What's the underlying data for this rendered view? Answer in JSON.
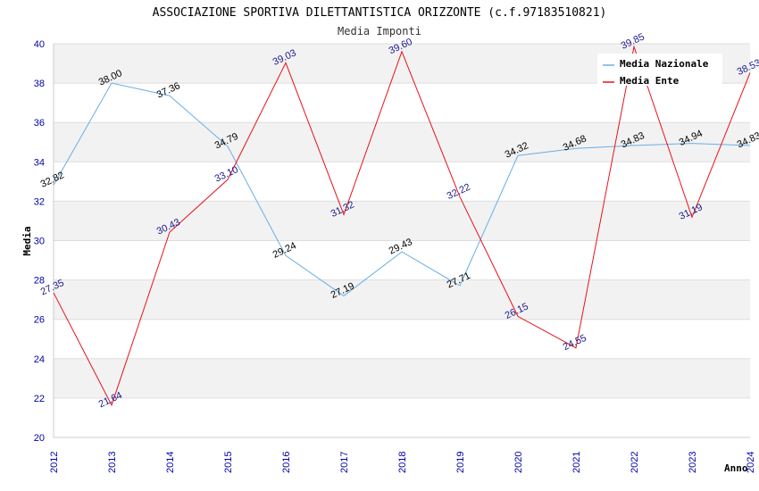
{
  "chart_data": {
    "type": "line",
    "title": "ASSOCIAZIONE SPORTIVA DILETTANTISTICA ORIZZONTE (c.f.97183510821)",
    "subtitle": "Media Imponti",
    "xlabel": "Anno",
    "ylabel": "Media",
    "ylim": [
      20,
      40
    ],
    "yticks": [
      "20",
      "22",
      "24",
      "26",
      "28",
      "30",
      "32",
      "34",
      "36",
      "38",
      "40"
    ],
    "x": [
      "2012",
      "2013",
      "2014",
      "2015",
      "2016",
      "2017",
      "2018",
      "2019",
      "2020",
      "2021",
      "2022",
      "2023",
      "2024"
    ],
    "legend_position": "top-right",
    "series": [
      {
        "name": "Media Nazionale",
        "color": "#6aaee6",
        "values": [
          32.82,
          38.0,
          37.36,
          34.79,
          29.24,
          27.19,
          29.43,
          27.71,
          34.32,
          34.68,
          34.83,
          34.94,
          34.83
        ],
        "labels": [
          "32.82",
          "38.00",
          "37.36",
          "34.79",
          "29.24",
          "27.19",
          "29.43",
          "27.71",
          "34.32",
          "34.68",
          "34.83",
          "34.94",
          "34.83"
        ]
      },
      {
        "name": "Media Ente",
        "color": "#e8121a",
        "values": [
          27.35,
          21.64,
          30.43,
          33.1,
          39.03,
          31.32,
          39.6,
          32.22,
          26.15,
          24.55,
          39.85,
          31.19,
          38.53
        ],
        "labels": [
          "27.35",
          "21.64",
          "30.43",
          "33.10",
          "39.03",
          "31.32",
          "39.60",
          "32.22",
          "26.15",
          "24.55",
          "39.85",
          "31.19",
          "38.53"
        ]
      }
    ]
  }
}
